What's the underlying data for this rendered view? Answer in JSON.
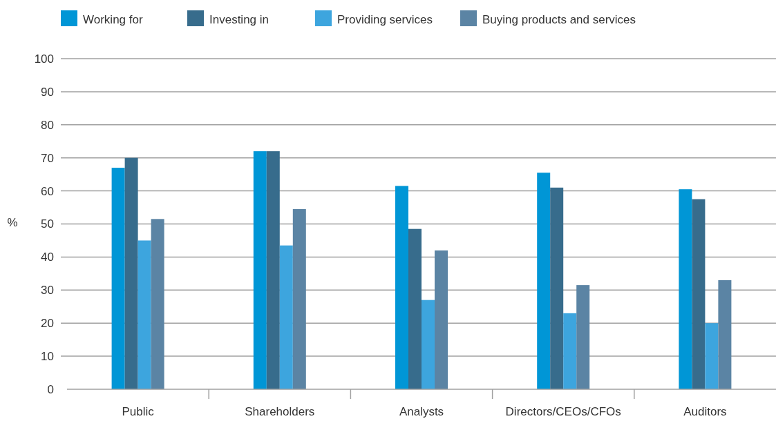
{
  "chart_data": {
    "type": "bar",
    "ylabel": "%",
    "categories": [
      "Public",
      "Shareholders",
      "Analysts",
      "Directors/CEOs/CFOs",
      "Auditors"
    ],
    "series": [
      {
        "name": "Working for",
        "color": "#0096d6",
        "values": [
          67,
          72,
          61.5,
          65.5,
          60.5
        ]
      },
      {
        "name": "Investing in",
        "color": "#376c8c",
        "values": [
          70,
          72,
          48.5,
          61,
          57.5
        ]
      },
      {
        "name": "Providing services",
        "color": "#3da5de",
        "values": [
          45,
          43.5,
          27,
          23,
          20
        ]
      },
      {
        "name": "Buying products and services",
        "color": "#5b84a4",
        "values": [
          51.5,
          54.5,
          42,
          31.5,
          33
        ]
      }
    ],
    "ylim": [
      0,
      100
    ],
    "yticks": [
      0,
      10,
      20,
      30,
      40,
      50,
      60,
      70,
      80,
      90,
      100
    ],
    "grid": "y",
    "legend": "top"
  }
}
